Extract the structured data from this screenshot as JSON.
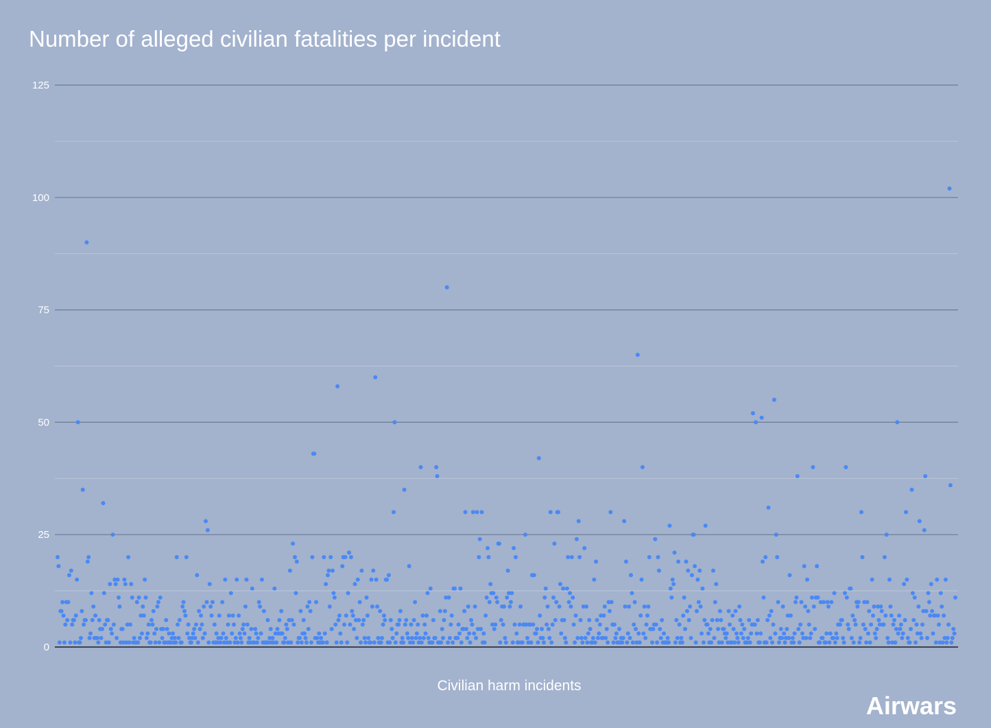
{
  "chart_data": {
    "type": "scatter",
    "title": "Number of alleged civilian fatalities per incident",
    "xlabel": "Civilian harm incidents",
    "ylabel": "",
    "ylim": [
      0,
      125
    ],
    "yticks": [
      "0",
      "25",
      "50",
      "75",
      "100",
      "125"
    ],
    "grid": true,
    "series": [
      {
        "color": "#4a89f3",
        "values": [
          20,
          18,
          1,
          8,
          8,
          10,
          7,
          1,
          5,
          10,
          6,
          10,
          16,
          1,
          17,
          5,
          6,
          6,
          1,
          7,
          15,
          50,
          1,
          1,
          2,
          8,
          35,
          5,
          6,
          6,
          90,
          19,
          20,
          2,
          3,
          12,
          6,
          9,
          2,
          7,
          2,
          2,
          1,
          6,
          4,
          2,
          4,
          32,
          12,
          5,
          1,
          6,
          6,
          1,
          14,
          4,
          3,
          25,
          5,
          15,
          14,
          2,
          15,
          11,
          9,
          1,
          4,
          4,
          1,
          15,
          14,
          1,
          5,
          20,
          1,
          5,
          14,
          11,
          1,
          2,
          1,
          1,
          10,
          1,
          11,
          2,
          7,
          3,
          9,
          7,
          15,
          11,
          2,
          3,
          5,
          1,
          1,
          6,
          5,
          8,
          3,
          1,
          4,
          9,
          10,
          1,
          11,
          4,
          2,
          4,
          1,
          1,
          6,
          4,
          1,
          3,
          1,
          1,
          2,
          3,
          1,
          2,
          1,
          20,
          5,
          2,
          6,
          1,
          1,
          9,
          10,
          8,
          7,
          20,
          3,
          5,
          2,
          1,
          1,
          2,
          3,
          4,
          2,
          5,
          16,
          1,
          8,
          4,
          7,
          5,
          2,
          9,
          3,
          28,
          10,
          26,
          1,
          14,
          9,
          7,
          10,
          1,
          5,
          1,
          3,
          1,
          2,
          7,
          1,
          2,
          10,
          3,
          1,
          15,
          2,
          1,
          5,
          7,
          1,
          12,
          3,
          7,
          5,
          1,
          2,
          15,
          1,
          7,
          3,
          2,
          1,
          4,
          5,
          3,
          9,
          15,
          5,
          1,
          2,
          1,
          4,
          13,
          1,
          1,
          4,
          3,
          1,
          2,
          10,
          9,
          3,
          15,
          1,
          8,
          1,
          1,
          1,
          6,
          1,
          2,
          4,
          1,
          2,
          1,
          13,
          3,
          1,
          4,
          3,
          6,
          3,
          8,
          3,
          1,
          1,
          2,
          5,
          4,
          1,
          6,
          17,
          1,
          6,
          23,
          5,
          20,
          12,
          19,
          1,
          2,
          2,
          8,
          1,
          3,
          6,
          3,
          2,
          1,
          9,
          4,
          10,
          8,
          1,
          20,
          43,
          43,
          2,
          10,
          2,
          1,
          3,
          1,
          2,
          1,
          1,
          20,
          3,
          14,
          1,
          16,
          17,
          9,
          20,
          4,
          17,
          12,
          11,
          5,
          1,
          58,
          6,
          7,
          3,
          1,
          18,
          20,
          5,
          20,
          7,
          1,
          12,
          21,
          5,
          20,
          8,
          7,
          4,
          14,
          6,
          2,
          15,
          6,
          10,
          1,
          17,
          5,
          6,
          2,
          1,
          11,
          7,
          2,
          1,
          1,
          15,
          9,
          17,
          1,
          60,
          15,
          9,
          2,
          1,
          8,
          1,
          2,
          5,
          7,
          6,
          15,
          15,
          1,
          16,
          1,
          6,
          4,
          2,
          30,
          50,
          1,
          3,
          5,
          5,
          6,
          8,
          1,
          2,
          1,
          35,
          5,
          6,
          3,
          2,
          18,
          1,
          5,
          2,
          1,
          6,
          10,
          2,
          3,
          5,
          1,
          2,
          40,
          1,
          7,
          2,
          5,
          3,
          7,
          12,
          2,
          1,
          13,
          1,
          1,
          6,
          2,
          2,
          40,
          38,
          1,
          1,
          8,
          1,
          4,
          2,
          6,
          8,
          11,
          80,
          1,
          11,
          2,
          5,
          7,
          1,
          13,
          13,
          2,
          2,
          2,
          5,
          3,
          13,
          1,
          4,
          4,
          8,
          30,
          4,
          2,
          9,
          3,
          1,
          6,
          5,
          30,
          3,
          9,
          2,
          30,
          4,
          20,
          24,
          4,
          30,
          1,
          3,
          1,
          7,
          11,
          22,
          20,
          10,
          14,
          12,
          5,
          12,
          4,
          5,
          11,
          10,
          23,
          23,
          1,
          6,
          9,
          5,
          9,
          2,
          1,
          11,
          17,
          12,
          9,
          10,
          12,
          1,
          22,
          5,
          20,
          3,
          1,
          1,
          5,
          9,
          1,
          1,
          5,
          5,
          25,
          5,
          2,
          1,
          5,
          5,
          1,
          16,
          5,
          16,
          3,
          3,
          4,
          1,
          42,
          7,
          2,
          4,
          2,
          1,
          11,
          13,
          5,
          9,
          4,
          2,
          30,
          1,
          5,
          11,
          23,
          6,
          10,
          30,
          30,
          9,
          14,
          3,
          6,
          13,
          6,
          2,
          1,
          13,
          20,
          10,
          12,
          9,
          20,
          11,
          5,
          1,
          7,
          24,
          2,
          28,
          20,
          6,
          2,
          1,
          9,
          22,
          2,
          9,
          1,
          3,
          6,
          4,
          1,
          1,
          2,
          15,
          1,
          19,
          6,
          2,
          3,
          5,
          7,
          2,
          2,
          7,
          9,
          2,
          4,
          1,
          10,
          8,
          30,
          10,
          5,
          1,
          5,
          2,
          3,
          1,
          1,
          4,
          1,
          2,
          1,
          2,
          28,
          9,
          19,
          1,
          3,
          9,
          2,
          16,
          12,
          1,
          5,
          10,
          4,
          1,
          65,
          3,
          1,
          7,
          15,
          40,
          3,
          9,
          2,
          5,
          7,
          9,
          20,
          4,
          4,
          1,
          4,
          5,
          24,
          5,
          1,
          20,
          17,
          4,
          2,
          6,
          1,
          3,
          1,
          1,
          1,
          2,
          1,
          27,
          13,
          11,
          15,
          14,
          21,
          1,
          6,
          2,
          19,
          5,
          1,
          2,
          1,
          7,
          11,
          4,
          19,
          8,
          17,
          6,
          9,
          2,
          16,
          25,
          25,
          18,
          1,
          8,
          15,
          10,
          17,
          9,
          3,
          13,
          1,
          6,
          27,
          5,
          5,
          3,
          1,
          4,
          1,
          6,
          17,
          2,
          10,
          14,
          6,
          4,
          1,
          8,
          6,
          1,
          4,
          4,
          3,
          2,
          3,
          1,
          8,
          5,
          1,
          1,
          7,
          4,
          1,
          8,
          3,
          2,
          1,
          9,
          6,
          3,
          5,
          2,
          4,
          1,
          1,
          1,
          2,
          6,
          1,
          3,
          5,
          52,
          5,
          5,
          50,
          3,
          6,
          1,
          1,
          3,
          51,
          19,
          11,
          1,
          20,
          1,
          6,
          31,
          7,
          2,
          8,
          1,
          5,
          55,
          3,
          25,
          20,
          10,
          1,
          2,
          4,
          2,
          9,
          3,
          1,
          2,
          4,
          7,
          2,
          16,
          7,
          1,
          2,
          1,
          3,
          10,
          11,
          38,
          4,
          1,
          5,
          10,
          3,
          2,
          18,
          9,
          2,
          15,
          8,
          5,
          2,
          3,
          11,
          40,
          9,
          4,
          11,
          18,
          11,
          1,
          1,
          10,
          2,
          2,
          10,
          1,
          1,
          3,
          10,
          9,
          1,
          3,
          10,
          2,
          2,
          12,
          1,
          3,
          2,
          5,
          5,
          5,
          6,
          6,
          2,
          1,
          12,
          40,
          11,
          5,
          4,
          13,
          13,
          2,
          7,
          1,
          6,
          5,
          10,
          9,
          10,
          1,
          2,
          30,
          20,
          5,
          10,
          4,
          1,
          10,
          3,
          8,
          1,
          5,
          15,
          7,
          9,
          3,
          2,
          4,
          9,
          6,
          5,
          9,
          8,
          5,
          5,
          20,
          7,
          25,
          2,
          1,
          15,
          9,
          7,
          1,
          5,
          6,
          1,
          4,
          50,
          3,
          7,
          4,
          5,
          2,
          3,
          14,
          6,
          30,
          15,
          2,
          1,
          1,
          4,
          35,
          12,
          6,
          11,
          1,
          5,
          3,
          9,
          28,
          3,
          2,
          5,
          8,
          26,
          38,
          8,
          2,
          12,
          10,
          7,
          14,
          8,
          3,
          7,
          7,
          1,
          15,
          7,
          5,
          1,
          12,
          9,
          1,
          7,
          2,
          15,
          1,
          2,
          5,
          102,
          36,
          1,
          2,
          4,
          3,
          11
        ]
      }
    ]
  },
  "brand": "Airwars"
}
